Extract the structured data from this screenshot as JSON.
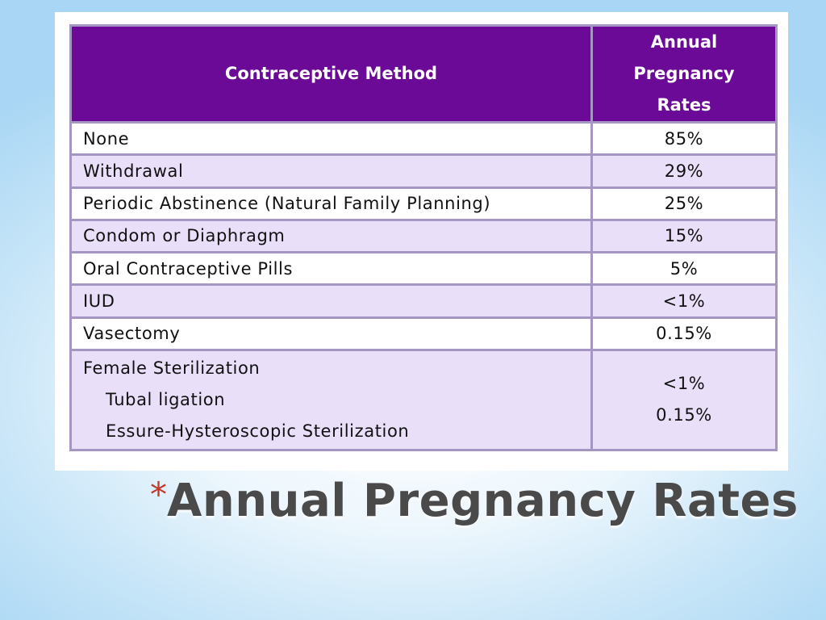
{
  "table": {
    "header": {
      "method": "Contraceptive Method",
      "rate_lines": [
        "Annual",
        "Pregnancy",
        "Rates"
      ]
    },
    "rows": [
      {
        "method": "None",
        "rate": "85%"
      },
      {
        "method": "Withdrawal",
        "rate": "29%"
      },
      {
        "method": "Periodic Abstinence (Natural Family Planning)",
        "rate": "25%"
      },
      {
        "method": "Condom or Diaphragm",
        "rate": "15%"
      },
      {
        "method": "Oral Contraceptive Pills",
        "rate": "5%"
      },
      {
        "method": "IUD",
        "rate": "<1%"
      },
      {
        "method": "Vasectomy",
        "rate": "0.15%"
      }
    ],
    "last_row": {
      "method": "Female Sterilization",
      "sub_methods": [
        "Tubal ligation",
        "Essure-Hysteroscopic Sterilization"
      ],
      "rates": [
        "<1%",
        "0.15%"
      ]
    }
  },
  "title": {
    "bullet": "*",
    "text": "Annual Pregnancy Rates"
  },
  "colors": {
    "header_bg": "#6a0a97",
    "row_tint": "#e9dff9",
    "border": "#a596c4",
    "bullet": "#c0392b",
    "title_text": "#4a4a4a"
  }
}
